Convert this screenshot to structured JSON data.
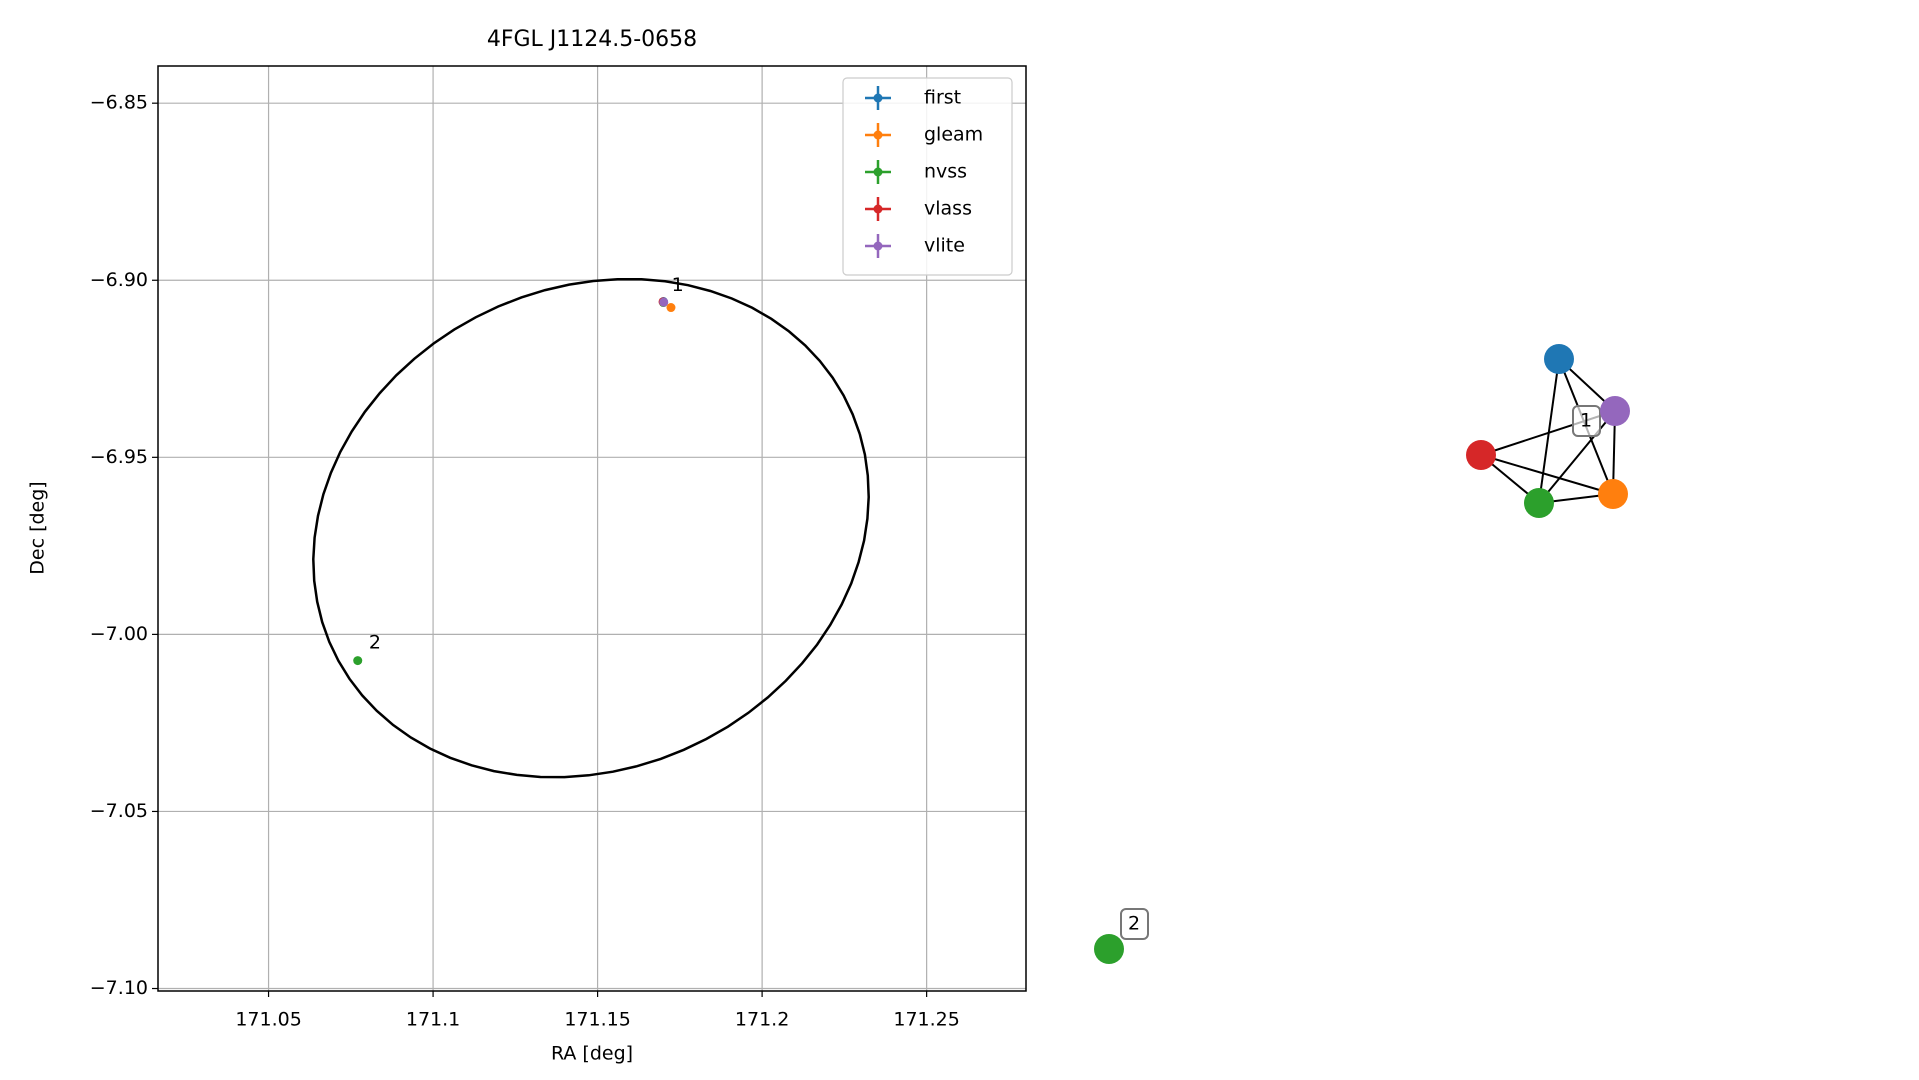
{
  "chart_data": {
    "type": "scatter",
    "title": "4FGL J1124.5-0658",
    "xlabel": "RA [deg]",
    "ylabel": "Dec [deg]",
    "xlim": [
      171.0164,
      171.2802
    ],
    "ylim": [
      -7.1007,
      -6.8395
    ],
    "xticks": [
      171.05,
      171.1,
      171.15,
      171.2,
      171.25
    ],
    "yticks": [
      {
        "value": -6.85,
        "label": "−6.85"
      },
      {
        "value": -6.9,
        "label": "−6.90"
      },
      {
        "value": -6.95,
        "label": "−6.95"
      },
      {
        "value": -7.0,
        "label": "−7.00"
      },
      {
        "value": -7.05,
        "label": "−7.05"
      },
      {
        "value": -7.1,
        "label": "−7.10"
      }
    ],
    "grid": true,
    "legend": "upper right",
    "series": [
      {
        "name": "first",
        "color": "#1f77b4",
        "x": [
          171.17
        ],
        "values": [
          -6.906
        ]
      },
      {
        "name": "gleam",
        "color": "#ff7f0e",
        "x": [
          171.1723
        ],
        "values": [
          -6.9077
        ]
      },
      {
        "name": "nvss",
        "color": "#2ca02c",
        "x": [
          171.17,
          171.0771
        ],
        "values": [
          -6.9063,
          -7.0074
        ]
      },
      {
        "name": "vlass",
        "color": "#d62728",
        "x": [
          171.1699
        ],
        "values": [
          -6.9061
        ]
      },
      {
        "name": "vlite",
        "color": "#9467bd",
        "x": [
          171.1701
        ],
        "values": [
          -6.9062
        ]
      }
    ],
    "ellipse": {
      "x": 171.148,
      "y": -6.97,
      "width": 0.1718,
      "height": 0.137,
      "angle": 18,
      "color": "#000000"
    },
    "annotations": [
      {
        "text": "1",
        "x": 171.1725,
        "y": -6.9015
      },
      {
        "text": "2",
        "x": 171.0805,
        "y": -7.0025
      }
    ]
  },
  "graph": {
    "labels": [
      "1",
      "2"
    ]
  }
}
